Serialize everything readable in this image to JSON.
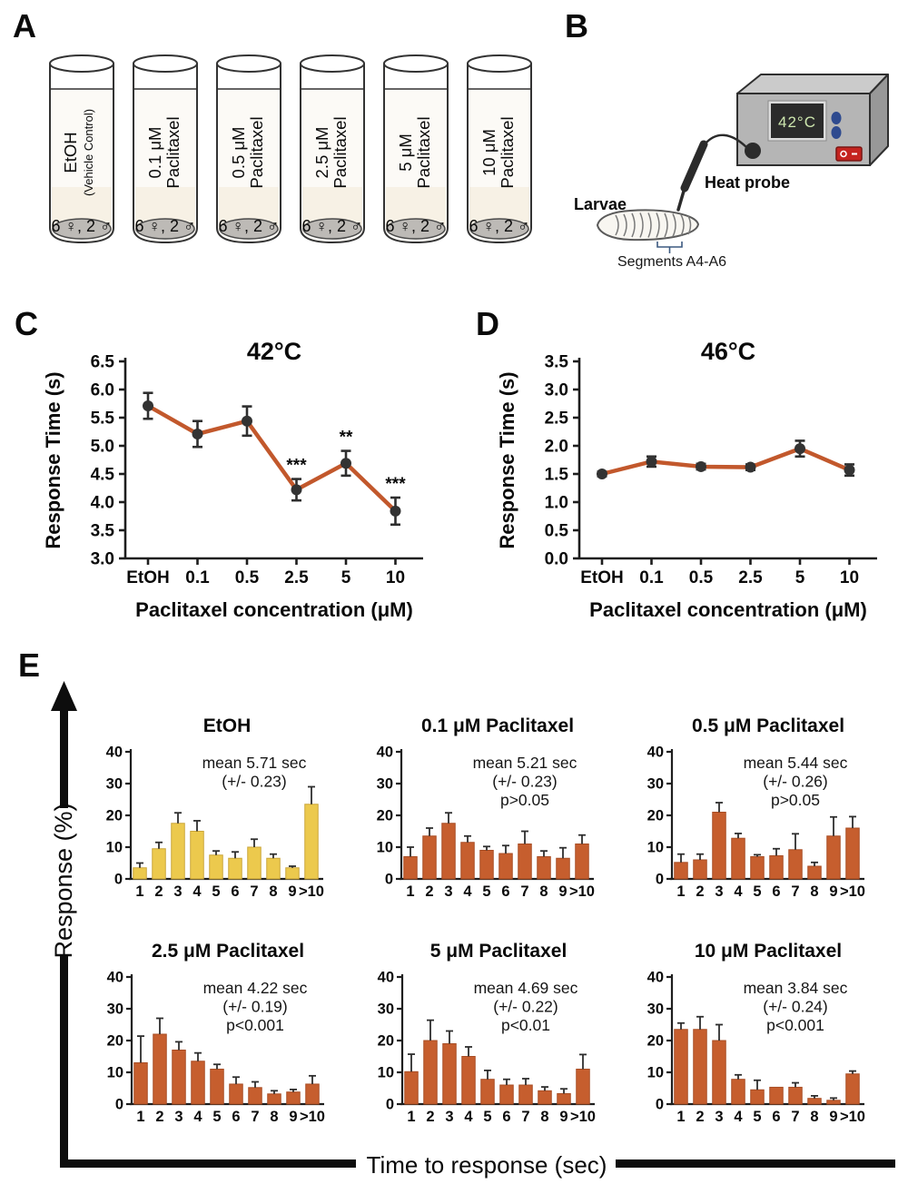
{
  "panels": {
    "a": {
      "label": "A",
      "vials": [
        {
          "line1": "EtOH",
          "line2": "(Vehicle Control)",
          "count": "6 ♀, 2 ♂"
        },
        {
          "line1": "0.1 μM",
          "line2": "Paclitaxel",
          "count": "6 ♀, 2 ♂"
        },
        {
          "line1": "0.5 μM",
          "line2": "Paclitaxel",
          "count": "6 ♀, 2 ♂"
        },
        {
          "line1": "2.5 μM",
          "line2": "Paclitaxel",
          "count": "6 ♀, 2 ♂"
        },
        {
          "line1": "5 μM",
          "line2": "Paclitaxel",
          "count": "6 ♀, 2 ♂"
        },
        {
          "line1": "10 μM",
          "line2": "Paclitaxel",
          "count": "6 ♀, 2 ♂"
        }
      ]
    },
    "b": {
      "label": "B",
      "display_value": "42°C",
      "heat_probe_label": "Heat probe",
      "larvae_label": "Larvae",
      "segments_label": "Segments A4-A6"
    },
    "c": {
      "label": "C"
    },
    "d": {
      "label": "D"
    },
    "e": {
      "label": "E",
      "ylabel": "Response (%)",
      "xlabel": "Time to response (sec)"
    }
  },
  "colors": {
    "line": "#c2582c",
    "marker": "#333333",
    "bar_orange": "#c65e2e",
    "bar_orange_edge": "#a84d24",
    "bar_yellow": "#ecc94d",
    "bar_yellow_edge": "#caa53a"
  },
  "chart_data": [
    {
      "id": "c42",
      "type": "line",
      "title": "42°C",
      "xlabel": "Paclitaxel concentration (μM)",
      "ylabel": "Response Time (s)",
      "categories": [
        "EtOH",
        "0.1",
        "0.5",
        "2.5",
        "5",
        "10"
      ],
      "values": [
        5.71,
        5.21,
        5.44,
        4.22,
        4.69,
        3.84
      ],
      "errors": [
        0.23,
        0.23,
        0.26,
        0.19,
        0.22,
        0.24
      ],
      "significance": [
        "",
        "",
        "",
        "***",
        "**",
        "***"
      ],
      "ylim": [
        3.0,
        6.5
      ],
      "ytick_step": 0.5,
      "line_color": "#c2582c",
      "marker_color": "#333333"
    },
    {
      "id": "d46",
      "type": "line",
      "title": "46°C",
      "xlabel": "Paclitaxel concentration (μM)",
      "ylabel": "Response Time (s)",
      "categories": [
        "EtOH",
        "0.1",
        "0.5",
        "2.5",
        "5",
        "10"
      ],
      "values": [
        1.5,
        1.72,
        1.63,
        1.62,
        1.95,
        1.57
      ],
      "errors": [
        0.04,
        0.09,
        0.05,
        0.05,
        0.14,
        0.1
      ],
      "significance": [
        "",
        "",
        "",
        "",
        "",
        ""
      ],
      "ylim": [
        0.0,
        3.5
      ],
      "ytick_step": 0.5,
      "line_color": "#c2582c",
      "marker_color": "#333333"
    },
    {
      "id": "e1",
      "type": "bar",
      "title": "EtOH",
      "categories": [
        "1",
        "2",
        "3",
        "4",
        "5",
        "6",
        "7",
        "8",
        "9",
        ">10"
      ],
      "values": [
        3.5,
        9.5,
        17.5,
        15,
        7.5,
        6.5,
        10,
        6.5,
        3.5,
        23.5
      ],
      "errors": [
        1.5,
        2,
        3.3,
        3.3,
        1.3,
        2,
        2.5,
        1.3,
        0.5,
        5.5
      ],
      "annotation": [
        "mean 5.71 sec",
        "(+/- 0.23)"
      ],
      "ylim": [
        0,
        40
      ],
      "ytick_step": 10,
      "bar_color": "#ecc94d",
      "bar_edge": "#caa53a"
    },
    {
      "id": "e2",
      "type": "bar",
      "title": "0.1 μM Paclitaxel",
      "categories": [
        "1",
        "2",
        "3",
        "4",
        "5",
        "6",
        "7",
        "8",
        "9",
        ">10"
      ],
      "values": [
        7,
        13.5,
        17.5,
        11.5,
        9,
        8,
        11,
        7,
        6.5,
        11
      ],
      "errors": [
        3,
        2.5,
        3.3,
        2,
        1.2,
        2.5,
        4,
        1.8,
        3.3,
        2.8
      ],
      "annotation": [
        "mean 5.21 sec",
        "(+/- 0.23)",
        "p>0.05"
      ],
      "ylim": [
        0,
        40
      ],
      "ytick_step": 10,
      "bar_color": "#c65e2e",
      "bar_edge": "#a84d24"
    },
    {
      "id": "e3",
      "type": "bar",
      "title": "0.5 μM Paclitaxel",
      "categories": [
        "1",
        "2",
        "3",
        "4",
        "5",
        "6",
        "7",
        "8",
        "9",
        ">10"
      ],
      "values": [
        5.2,
        6,
        21,
        12.8,
        7,
        7.3,
        9.2,
        4,
        13.5,
        16
      ],
      "errors": [
        2.6,
        1.8,
        3,
        1.5,
        0.6,
        2.2,
        5,
        1.2,
        6,
        3.6
      ],
      "annotation": [
        "mean 5.44 sec",
        "(+/- 0.26)",
        "p>0.05"
      ],
      "ylim": [
        0,
        40
      ],
      "ytick_step": 10,
      "bar_color": "#c65e2e",
      "bar_edge": "#a84d24"
    },
    {
      "id": "e4",
      "type": "bar",
      "title": "2.5 μM Paclitaxel",
      "categories": [
        "1",
        "2",
        "3",
        "4",
        "5",
        "6",
        "7",
        "8",
        "9",
        ">10"
      ],
      "values": [
        13,
        22,
        17,
        13.5,
        11,
        6.3,
        5.2,
        3.2,
        3.8,
        6.3
      ],
      "errors": [
        8.4,
        5,
        2.6,
        2.6,
        1.5,
        2.2,
        1.8,
        1,
        0.8,
        2.6
      ],
      "annotation": [
        "mean 4.22 sec",
        "(+/- 0.19)",
        "p<0.001"
      ],
      "ylim": [
        0,
        40
      ],
      "ytick_step": 10,
      "bar_color": "#c65e2e",
      "bar_edge": "#a84d24"
    },
    {
      "id": "e5",
      "type": "bar",
      "title": "5 μM Paclitaxel",
      "categories": [
        "1",
        "2",
        "3",
        "4",
        "5",
        "6",
        "7",
        "8",
        "9",
        ">10"
      ],
      "values": [
        10.2,
        20,
        19,
        15,
        7.8,
        6,
        6,
        4.2,
        3.3,
        11
      ],
      "errors": [
        5.5,
        6.4,
        4,
        3,
        2.8,
        1.8,
        2,
        1.2,
        1.5,
        4.6
      ],
      "annotation": [
        "mean 4.69 sec",
        "(+/- 0.22)",
        "p<0.01"
      ],
      "ylim": [
        0,
        40
      ],
      "ytick_step": 10,
      "bar_color": "#c65e2e",
      "bar_edge": "#a84d24"
    },
    {
      "id": "e6",
      "type": "bar",
      "title": "10 μM Paclitaxel",
      "categories": [
        "1",
        "2",
        "3",
        "4",
        "5",
        "6",
        "7",
        "8",
        "9",
        ">10"
      ],
      "values": [
        23.5,
        23.5,
        20,
        7.8,
        4.5,
        5.3,
        5.3,
        1.8,
        1.2,
        9.5
      ],
      "errors": [
        2,
        4,
        5,
        1.4,
        3,
        0,
        1.4,
        0.8,
        0.7,
        0.9
      ],
      "annotation": [
        "mean 3.84 sec",
        "(+/- 0.24)",
        "p<0.001"
      ],
      "ylim": [
        0,
        40
      ],
      "ytick_step": 10,
      "bar_color": "#c65e2e",
      "bar_edge": "#a84d24"
    }
  ]
}
